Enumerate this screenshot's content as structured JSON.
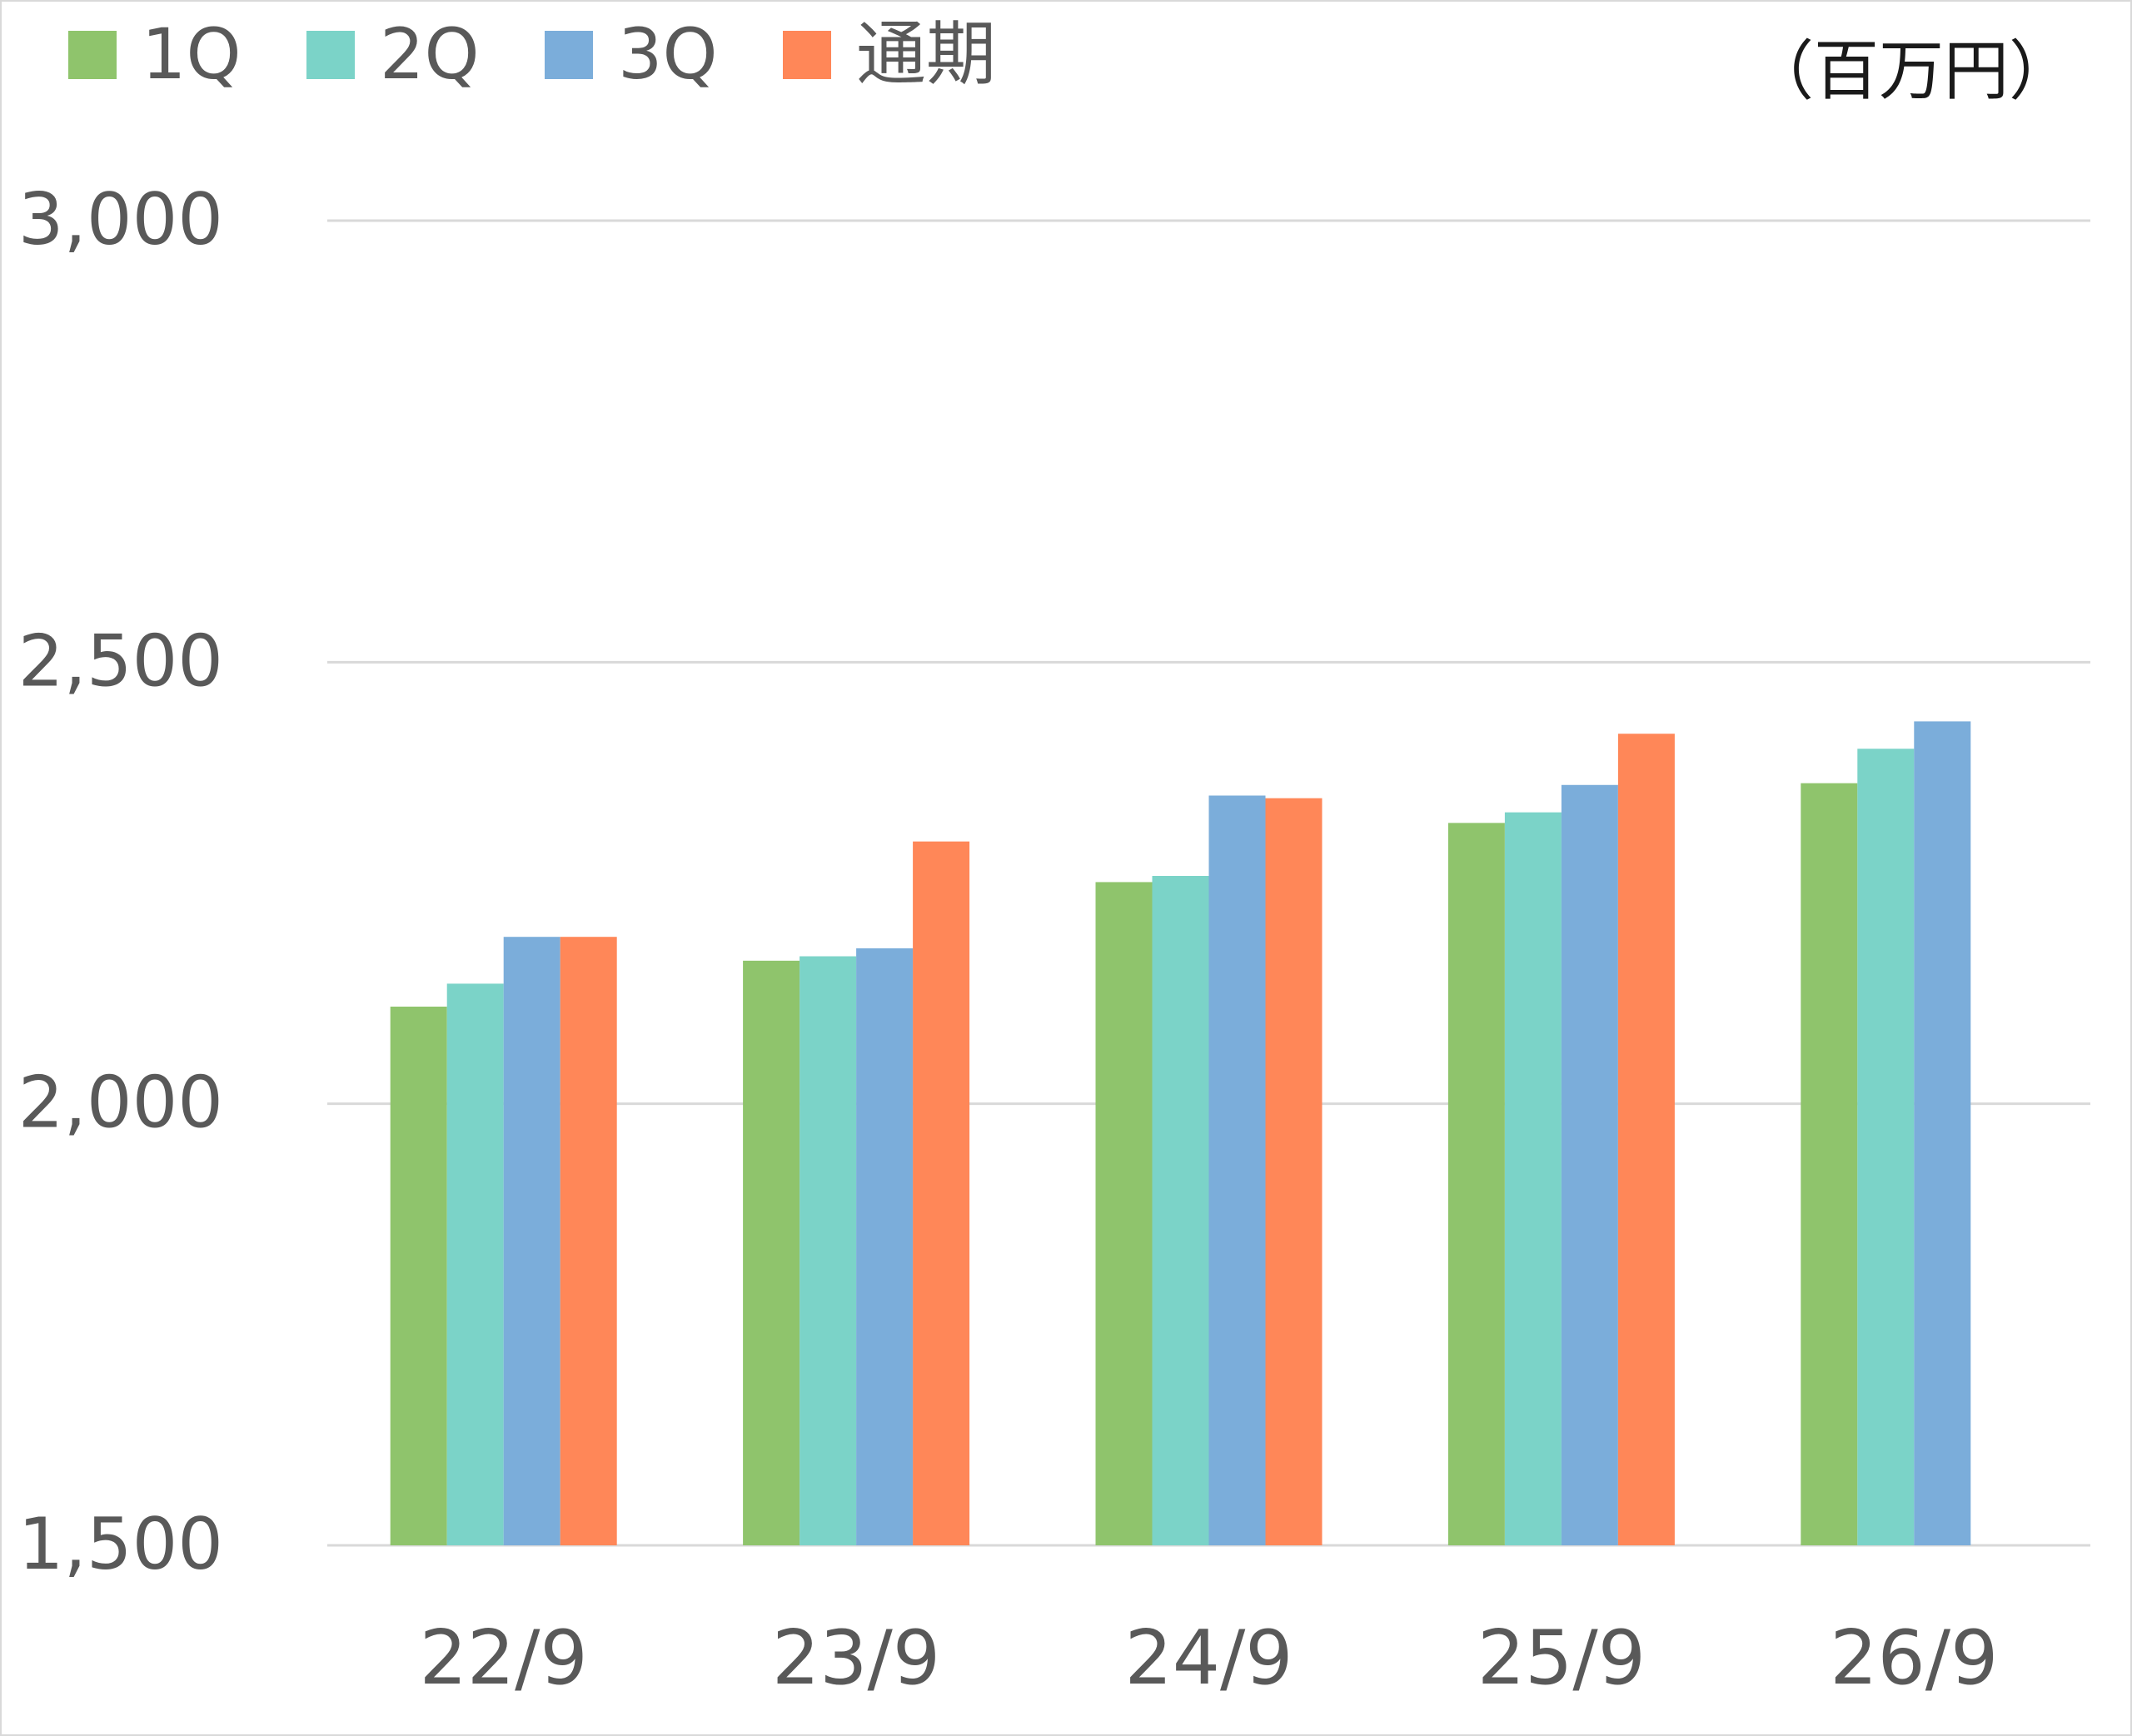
{
  "chart_data": {
    "type": "bar",
    "unit": "（百万円）",
    "categories": [
      "22/9",
      "23/9",
      "24/9",
      "25/9",
      "26/9"
    ],
    "series": [
      {
        "name": "1Q",
        "color": "#8fc46c",
        "values": [
          2110,
          2162,
          2251,
          2318,
          2363
        ]
      },
      {
        "name": "2Q",
        "color": "#7bd3c8",
        "values": [
          2136,
          2167,
          2258,
          2330,
          2402
        ]
      },
      {
        "name": "3Q",
        "color": "#7badda",
        "values": [
          2189,
          2176,
          2349,
          2361,
          2433
        ]
      },
      {
        "name": "通期",
        "color": "#ff8758",
        "values": [
          2189,
          2297,
          2346,
          2419,
          null
        ]
      }
    ],
    "ylim": [
      1500,
      3000
    ],
    "yticks": [
      3000,
      2500,
      2000,
      1500
    ],
    "ytick_labels": [
      "3,000",
      "2,500",
      "2,000",
      "1,500"
    ],
    "grid": true,
    "legend_position": "top-left"
  }
}
